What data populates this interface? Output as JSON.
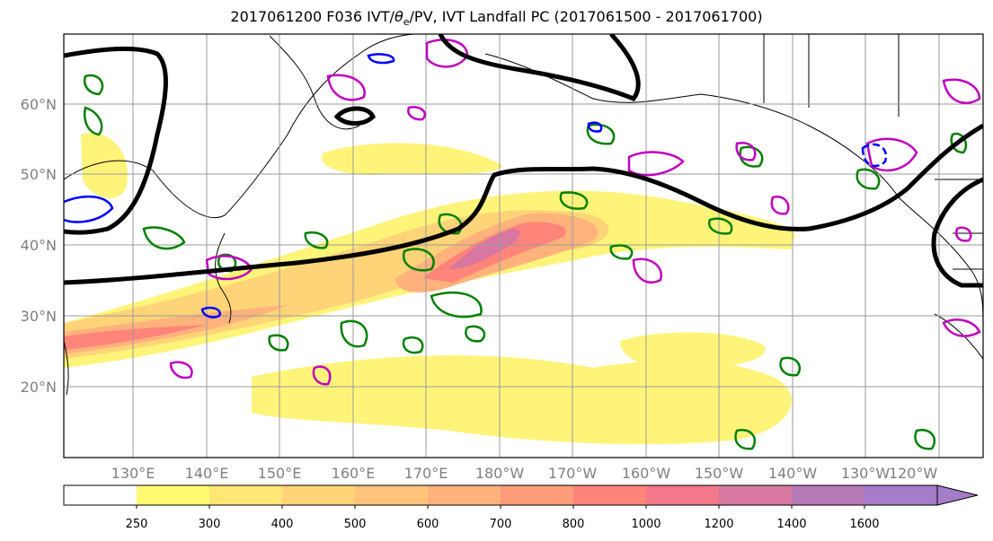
{
  "title": {
    "prefix": "2017061200 F036 IVT/",
    "theta_symbol": "θ",
    "theta_sub": "e",
    "suffix": "/PV, IVT Landfall PC (2017061500 - 2017061700)"
  },
  "map": {
    "lat_labels": [
      "60°N",
      "50°N",
      "40°N",
      "30°N",
      "20°N"
    ],
    "lon_labels": [
      "130°E",
      "140°E",
      "150°E",
      "160°E",
      "170°E",
      "180°W",
      "170°W",
      "160°W",
      "150°W",
      "140°W",
      "130°W",
      "120°W"
    ],
    "colors": {
      "jet_line": "#000000",
      "pv_contour": "#008000",
      "theta_e_contour_magenta": "#bf00bf",
      "theta_e_contour_blue": "#0000ff",
      "gridline": "#9a9a9a",
      "coastline": "#000000"
    }
  },
  "colorbar": {
    "ticks": [
      "250",
      "300",
      "400",
      "500",
      "600",
      "700",
      "800",
      "1000",
      "1200",
      "1400",
      "1600"
    ],
    "colors": [
      "#ffffff",
      "#fffa72",
      "#ffe675",
      "#ffd478",
      "#ffc47b",
      "#ffb27c",
      "#ff9c7a",
      "#ff847a",
      "#f2788a",
      "#d878a0",
      "#b67ab8",
      "#a47cc8"
    ]
  }
}
